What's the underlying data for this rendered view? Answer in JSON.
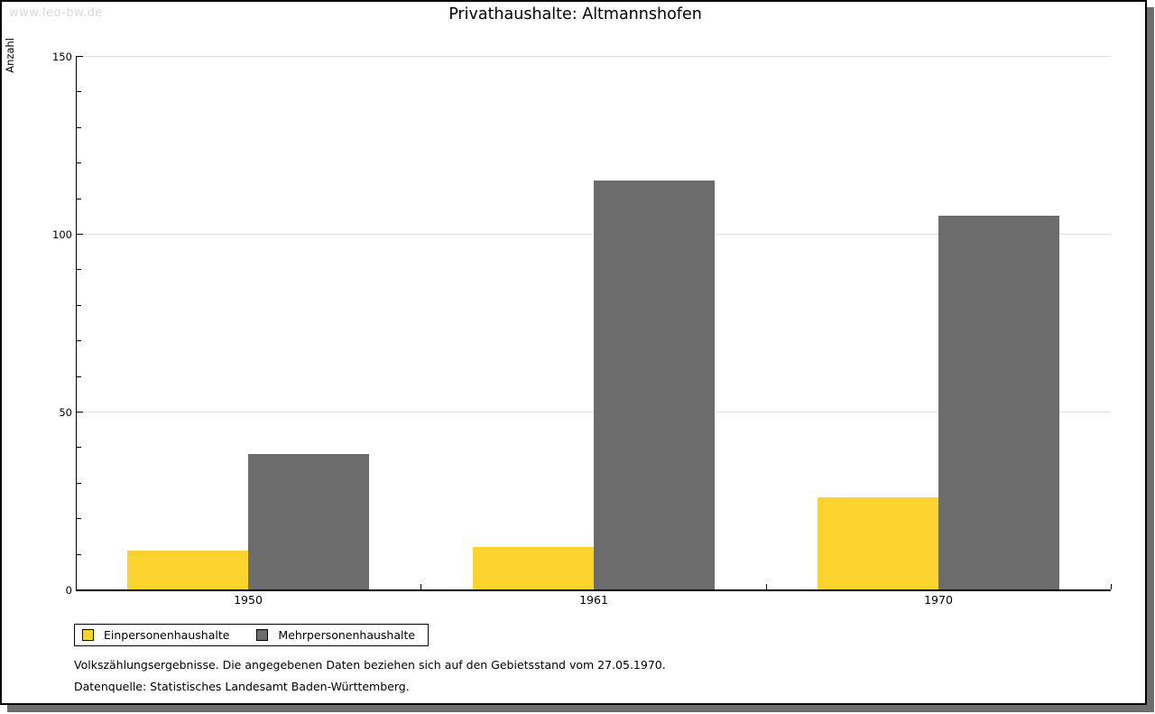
{
  "watermark": "www.leo-bw.de",
  "header": {
    "title": "Privathaushalte: Altmannshofen"
  },
  "chart_data": {
    "type": "bar",
    "title": "Privathaushalte: Altmannshofen",
    "ylabel": "Anzahl",
    "xlabel": "",
    "categories": [
      "1950",
      "1961",
      "1970"
    ],
    "series": [
      {
        "name": "Einpersonenhaushalte",
        "color": "#FCD32E",
        "values": [
          11,
          12,
          26
        ]
      },
      {
        "name": "Mehrpersonenhaushalte",
        "color": "#6C6C6C",
        "values": [
          38,
          115,
          105
        ]
      }
    ],
    "ylim": [
      0,
      150
    ],
    "yticks": [
      0,
      50,
      100,
      150
    ],
    "minor_tick_step": 10,
    "grid": true,
    "gridline_values": [
      50,
      100,
      150
    ],
    "legend_position": "bottom-left"
  },
  "footer": {
    "note": "Volkszählungsergebnisse. Die angegebenen Daten beziehen sich auf den Gebietsstand vom 27.05.1970.",
    "source": "Datenquelle: Statistisches Landesamt Baden-Württemberg."
  },
  "colors": {
    "axis": "#000000",
    "gridline": "#DEDEDE",
    "series1": "#FCD32E",
    "series2": "#6C6C6C",
    "watermark": "#D9D9D9",
    "frame_shadow": "#6E6E6E"
  }
}
